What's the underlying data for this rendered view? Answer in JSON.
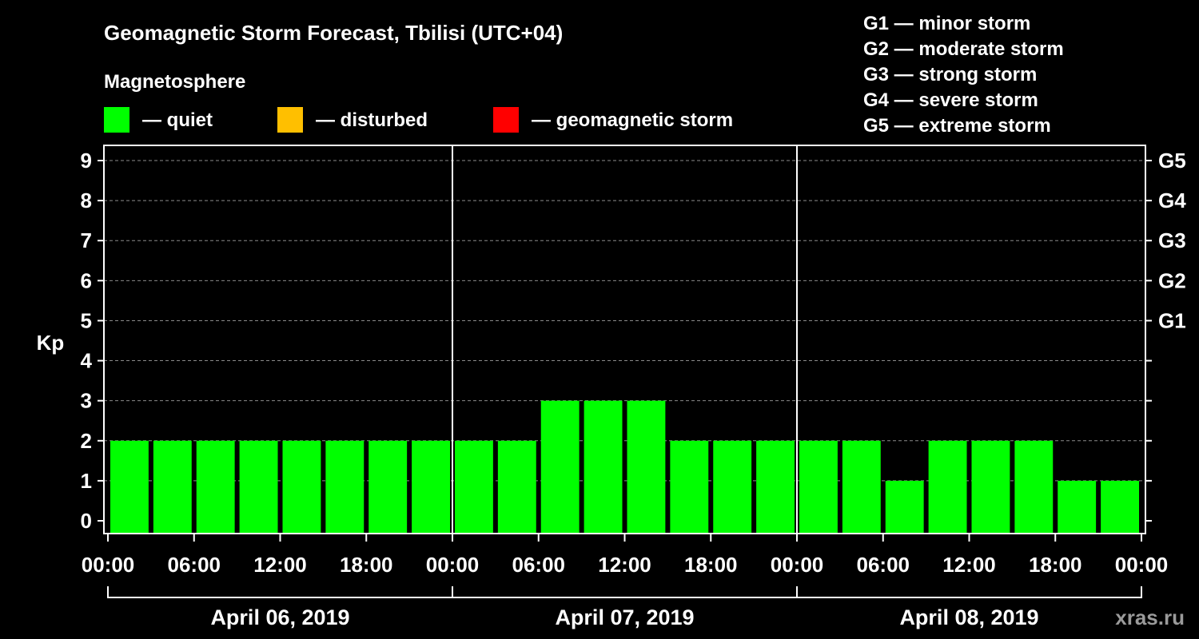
{
  "chart_data": {
    "type": "bar",
    "title": "Geomagnetic Storm Forecast, Tbilisi (UTC+04)",
    "legend_title": "Magnetosphere",
    "legend": [
      {
        "color": "#00ff00",
        "label": "— quiet"
      },
      {
        "color": "#ffbf00",
        "label": "— disturbed"
      },
      {
        "color": "#ff0000",
        "label": "— geomagnetic storm"
      }
    ],
    "storm_scale": [
      "G1 — minor storm",
      "G2 — moderate storm",
      "G3 — strong storm",
      "G4 — severe storm",
      "G5 — extreme storm"
    ],
    "ylabel": "Kp",
    "ylim": [
      0,
      9
    ],
    "y_ticks": [
      "0",
      "1",
      "2",
      "3",
      "4",
      "5",
      "6",
      "7",
      "8",
      "9"
    ],
    "right_ticks": [
      {
        "kp": 5,
        "label": "G1"
      },
      {
        "kp": 6,
        "label": "G2"
      },
      {
        "kp": 7,
        "label": "G3"
      },
      {
        "kp": 8,
        "label": "G4"
      },
      {
        "kp": 9,
        "label": "G5"
      }
    ],
    "x_ticks": [
      "00:00",
      "06:00",
      "12:00",
      "18:00",
      "00:00",
      "06:00",
      "12:00",
      "18:00",
      "00:00",
      "06:00",
      "12:00",
      "18:00",
      "00:00"
    ],
    "days": [
      "April 06, 2019",
      "April 07, 2019",
      "April 08, 2019"
    ],
    "bar_interval_hours": 3,
    "bar_start_hour": -1.5,
    "values": [
      2,
      2,
      2,
      2,
      2,
      2,
      2,
      2,
      2,
      2,
      2,
      3,
      3,
      3,
      2,
      2,
      2,
      2,
      2,
      1,
      2,
      2,
      2,
      1,
      1
    ],
    "bar_color": "#00ff00",
    "watermark": "xras.ru"
  }
}
